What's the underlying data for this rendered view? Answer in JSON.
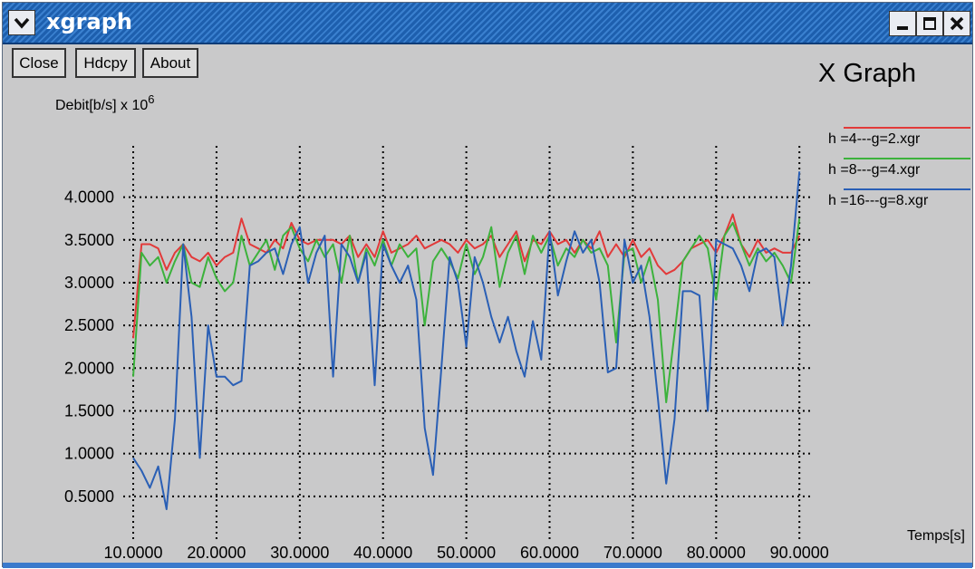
{
  "window": {
    "title": "xgraph"
  },
  "toolbar": {
    "close_label": "Close",
    "hdcpy_label": "Hdcpy",
    "about_label": "About"
  },
  "graph_title": "X Graph",
  "colors": {
    "titlebar": "#2a6fc0",
    "background": "#c9c9ca",
    "grid": "#000000"
  },
  "chart_data": {
    "type": "line",
    "title": "X Graph",
    "xlabel": "Temps[s]",
    "ylabel": "Debit[b/s] x 10^6",
    "xlim": [
      8.8,
      91.5
    ],
    "ylim": [
      0.0,
      4.6
    ],
    "x_ticks": [
      10,
      20,
      30,
      40,
      50,
      60,
      70,
      80,
      90
    ],
    "x_tick_labels": [
      "10.0000",
      "20.0000",
      "30.0000",
      "40.0000",
      "50.0000",
      "60.0000",
      "70.0000",
      "80.0000",
      "90.0000"
    ],
    "y_ticks": [
      0.5,
      1.0,
      1.5,
      2.0,
      2.5,
      3.0,
      3.5,
      4.0
    ],
    "y_tick_labels": [
      "0.5000",
      "1.0000",
      "1.5000",
      "2.0000",
      "2.5000",
      "3.0000",
      "3.5000",
      "4.0000"
    ],
    "grid": true,
    "legend_position": "right",
    "series": [
      {
        "name": "h =4---g=2.xgr",
        "color": "#e23a3a",
        "x": [
          10,
          11,
          12,
          13,
          14,
          15,
          16,
          17,
          18,
          19,
          20,
          21,
          22,
          23,
          24,
          25,
          26,
          27,
          28,
          29,
          30,
          31,
          32,
          33,
          34,
          35,
          36,
          37,
          38,
          39,
          40,
          41,
          42,
          43,
          44,
          45,
          46,
          47,
          48,
          49,
          50,
          51,
          52,
          53,
          54,
          55,
          56,
          57,
          58,
          59,
          60,
          61,
          62,
          63,
          64,
          65,
          66,
          67,
          68,
          69,
          70,
          71,
          72,
          73,
          74,
          75,
          76,
          77,
          78,
          79,
          80,
          81,
          82,
          83,
          84,
          85,
          86,
          87,
          88,
          89,
          90
        ],
        "y": [
          2.35,
          3.45,
          3.45,
          3.4,
          3.15,
          3.35,
          3.45,
          3.3,
          3.25,
          3.35,
          3.2,
          3.3,
          3.35,
          3.75,
          3.45,
          3.4,
          3.35,
          3.5,
          3.4,
          3.7,
          3.5,
          3.45,
          3.5,
          3.5,
          3.5,
          3.45,
          3.55,
          3.3,
          3.45,
          3.3,
          3.6,
          3.35,
          3.4,
          3.45,
          3.55,
          3.4,
          3.45,
          3.5,
          3.45,
          3.35,
          3.5,
          3.4,
          3.45,
          3.55,
          3.3,
          3.45,
          3.6,
          3.25,
          3.5,
          3.45,
          3.6,
          3.45,
          3.5,
          3.35,
          3.5,
          3.4,
          3.6,
          3.3,
          3.45,
          3.3,
          3.5,
          3.3,
          3.4,
          3.2,
          3.1,
          3.15,
          3.25,
          3.4,
          3.45,
          3.5,
          3.35,
          3.55,
          3.8,
          3.45,
          3.3,
          3.5,
          3.35,
          3.4,
          3.35,
          3.35,
          3.55
        ]
      },
      {
        "name": "h =8---g=4.xgr",
        "color": "#3cb23c",
        "x": [
          10,
          11,
          12,
          13,
          14,
          15,
          16,
          17,
          18,
          19,
          20,
          21,
          22,
          23,
          24,
          25,
          26,
          27,
          28,
          29,
          30,
          31,
          32,
          33,
          34,
          35,
          36,
          37,
          38,
          39,
          40,
          41,
          42,
          43,
          44,
          45,
          46,
          47,
          48,
          49,
          50,
          51,
          52,
          53,
          54,
          55,
          56,
          57,
          58,
          59,
          60,
          61,
          62,
          63,
          64,
          65,
          66,
          67,
          68,
          69,
          70,
          71,
          72,
          73,
          74,
          75,
          76,
          77,
          78,
          79,
          80,
          81,
          82,
          83,
          84,
          85,
          86,
          87,
          88,
          89,
          90
        ],
        "y": [
          1.9,
          3.35,
          3.2,
          3.3,
          3.0,
          3.25,
          3.45,
          3.0,
          2.95,
          3.3,
          3.05,
          2.9,
          3.0,
          3.55,
          3.2,
          3.35,
          3.5,
          3.15,
          3.55,
          3.65,
          3.4,
          3.25,
          3.5,
          3.3,
          3.45,
          3.0,
          3.55,
          3.0,
          3.4,
          3.2,
          3.5,
          3.2,
          3.45,
          3.3,
          3.4,
          2.5,
          3.25,
          3.4,
          3.25,
          3.05,
          3.45,
          3.1,
          3.3,
          3.65,
          2.95,
          3.35,
          3.55,
          3.1,
          3.55,
          3.35,
          3.55,
          3.2,
          3.4,
          3.3,
          3.5,
          3.35,
          3.4,
          3.2,
          2.3,
          3.35,
          3.4,
          3.0,
          3.3,
          2.8,
          1.6,
          2.4,
          3.25,
          3.4,
          3.55,
          3.4,
          2.8,
          3.55,
          3.7,
          3.45,
          3.2,
          3.4,
          3.25,
          3.35,
          3.2,
          3.0,
          3.75
        ]
      },
      {
        "name": "h =16---g=8.xgr",
        "color": "#2a5fb5",
        "x": [
          10,
          11,
          12,
          13,
          14,
          15,
          16,
          17,
          18,
          19,
          20,
          21,
          22,
          23,
          24,
          25,
          26,
          27,
          28,
          29,
          30,
          31,
          32,
          33,
          34,
          35,
          36,
          37,
          38,
          39,
          40,
          41,
          42,
          43,
          44,
          45,
          46,
          47,
          48,
          49,
          50,
          51,
          52,
          53,
          54,
          55,
          56,
          57,
          58,
          59,
          60,
          61,
          62,
          63,
          64,
          65,
          66,
          67,
          68,
          69,
          70,
          71,
          72,
          73,
          74,
          75,
          76,
          77,
          78,
          79,
          80,
          81,
          82,
          83,
          84,
          85,
          86,
          87,
          88,
          89,
          90
        ],
        "y": [
          0.95,
          0.8,
          0.6,
          0.85,
          0.35,
          1.4,
          3.45,
          2.6,
          0.95,
          2.5,
          1.9,
          1.9,
          1.8,
          1.85,
          3.2,
          3.25,
          3.35,
          3.4,
          3.1,
          3.45,
          3.65,
          3.0,
          3.35,
          3.55,
          1.9,
          3.45,
          3.3,
          3.0,
          3.35,
          1.8,
          3.45,
          3.2,
          3.0,
          3.2,
          2.8,
          1.3,
          0.75,
          2.0,
          3.3,
          3.0,
          2.25,
          3.3,
          3.0,
          2.6,
          2.3,
          2.6,
          2.2,
          1.9,
          2.55,
          2.1,
          3.6,
          2.85,
          3.25,
          3.6,
          3.35,
          3.5,
          3.0,
          1.95,
          2.0,
          3.5,
          3.0,
          3.2,
          2.6,
          1.65,
          0.65,
          1.4,
          2.9,
          2.9,
          2.85,
          1.5,
          3.5,
          3.45,
          3.4,
          3.2,
          2.9,
          3.35,
          3.4,
          3.3,
          2.5,
          3.2,
          4.3
        ]
      }
    ]
  }
}
